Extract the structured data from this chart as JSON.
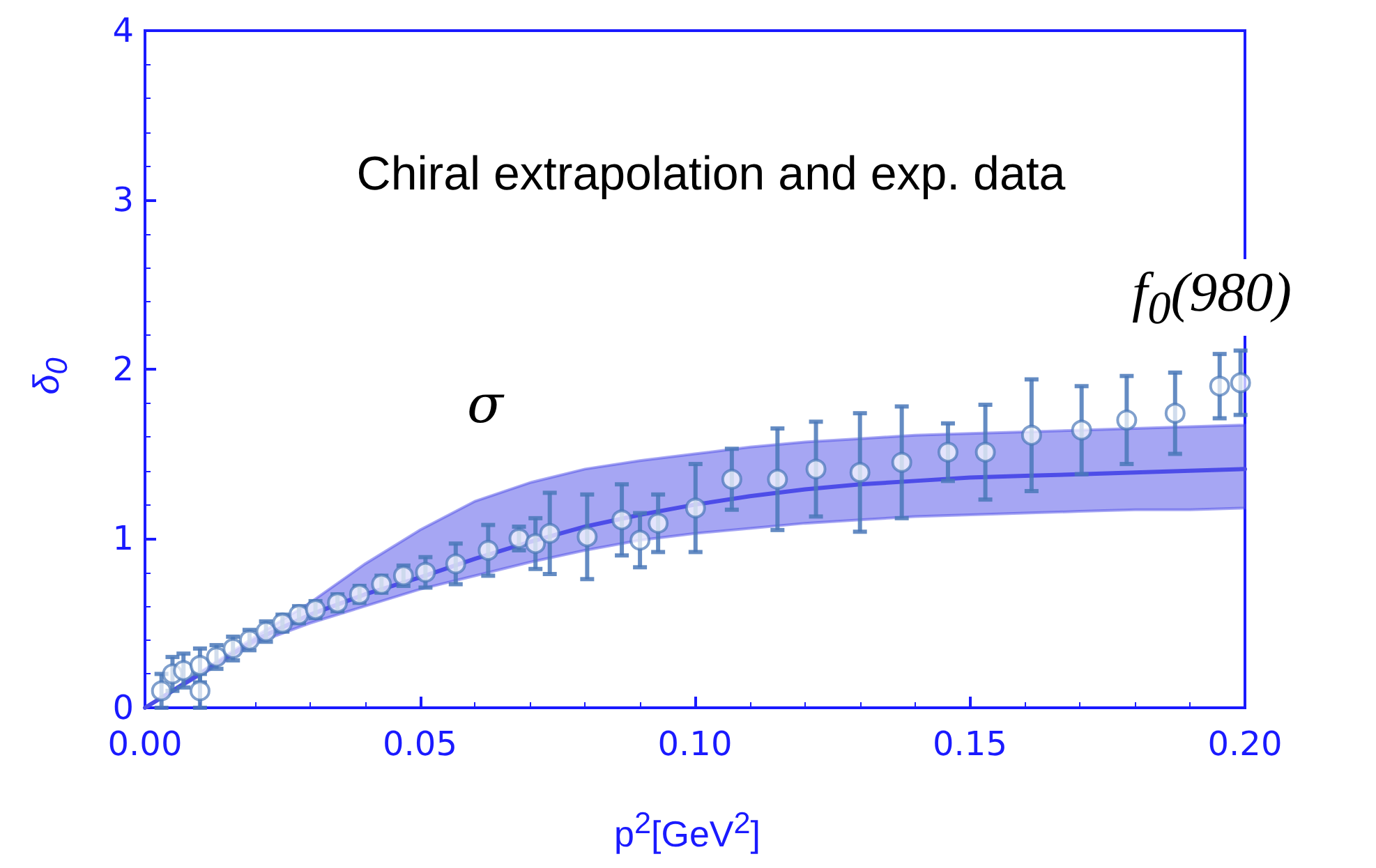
{
  "chart_data": {
    "type": "scatter",
    "xlabel": "p$^{2}$[GeV$^{2}$]",
    "ylabel": "δ$_{0}$",
    "annotations": [
      "Chiral extrapolation and exp. data",
      "σ",
      "f$_{0}$(980)"
    ],
    "xlim": [
      0,
      0.2
    ],
    "ylim": [
      0,
      4
    ],
    "xticks": [
      {
        "value": 0,
        "label": "0.00"
      },
      {
        "value": 0.05,
        "label": "0.05"
      },
      {
        "value": 0.1,
        "label": "0.10"
      },
      {
        "value": 0.15,
        "label": "0.15"
      },
      {
        "value": 0.2,
        "label": "0.20"
      }
    ],
    "yticks": [
      0,
      1,
      2,
      3,
      4
    ],
    "grid": false,
    "series": [
      {
        "type": "line",
        "color": "#4d4de8",
        "marker": "none",
        "line_style": "solid",
        "x": [
          0,
          0.01,
          0.02,
          0.03,
          0.04,
          0.05,
          0.06,
          0.07,
          0.08,
          0.09,
          0.1,
          0.11,
          0.12,
          0.13,
          0.14,
          0.15,
          0.16,
          0.17,
          0.18,
          0.19,
          0.2
        ],
        "values": [
          0,
          0.2,
          0.4,
          0.55,
          0.67,
          0.77,
          0.88,
          0.98,
          1.07,
          1.14,
          1.2,
          1.25,
          1.29,
          1.32,
          1.34,
          1.36,
          1.37,
          1.38,
          1.39,
          1.4,
          1.41
        ],
        "lower": [
          0,
          0.19,
          0.38,
          0.5,
          0.6,
          0.7,
          0.78,
          0.86,
          0.93,
          0.99,
          1.03,
          1.06,
          1.09,
          1.11,
          1.13,
          1.14,
          1.15,
          1.16,
          1.17,
          1.17,
          1.18
        ],
        "upper": [
          0,
          0.21,
          0.42,
          0.62,
          0.85,
          1.05,
          1.22,
          1.33,
          1.41,
          1.46,
          1.5,
          1.54,
          1.57,
          1.59,
          1.61,
          1.62,
          1.63,
          1.64,
          1.65,
          1.66,
          1.67
        ]
      },
      {
        "color": "#4a78b8",
        "marker": "circle",
        "x": [
          0.003,
          0.005,
          0.007,
          0.01,
          0.01,
          0.013,
          0.016,
          0.019,
          0.022,
          0.025,
          0.028,
          0.031,
          0.035,
          0.039,
          0.043,
          0.047,
          0.051,
          0.0565,
          0.0624,
          0.068,
          0.071,
          0.0736,
          0.0804,
          0.0867,
          0.09,
          0.0933,
          0.1001,
          0.1067,
          0.115,
          0.122,
          0.13,
          0.1376,
          0.146,
          0.1528,
          0.1612,
          0.1703,
          0.1785,
          0.1873,
          0.1954,
          0.1992
        ],
        "values": [
          0.1,
          0.2,
          0.22,
          0.1,
          0.25,
          0.3,
          0.35,
          0.4,
          0.45,
          0.5,
          0.55,
          0.58,
          0.62,
          0.67,
          0.73,
          0.78,
          0.8,
          0.85,
          0.93,
          1.0,
          0.97,
          1.03,
          1.01,
          1.11,
          0.99,
          1.09,
          1.18,
          1.35,
          1.35,
          1.41,
          1.39,
          1.45,
          1.51,
          1.51,
          1.61,
          1.64,
          1.7,
          1.74,
          1.9,
          1.92
        ],
        "errors": [
          0.1,
          0.1,
          0.1,
          0.1,
          0.1,
          0.07,
          0.07,
          0.06,
          0.06,
          0.05,
          0.05,
          0.05,
          0.05,
          0.05,
          0.05,
          0.06,
          0.09,
          0.12,
          0.15,
          0.07,
          0.15,
          0.24,
          0.25,
          0.21,
          0.16,
          0.17,
          0.26,
          0.18,
          0.3,
          0.28,
          0.35,
          0.33,
          0.17,
          0.28,
          0.33,
          0.26,
          0.26,
          0.24,
          0.19,
          0.19
        ]
      }
    ]
  }
}
